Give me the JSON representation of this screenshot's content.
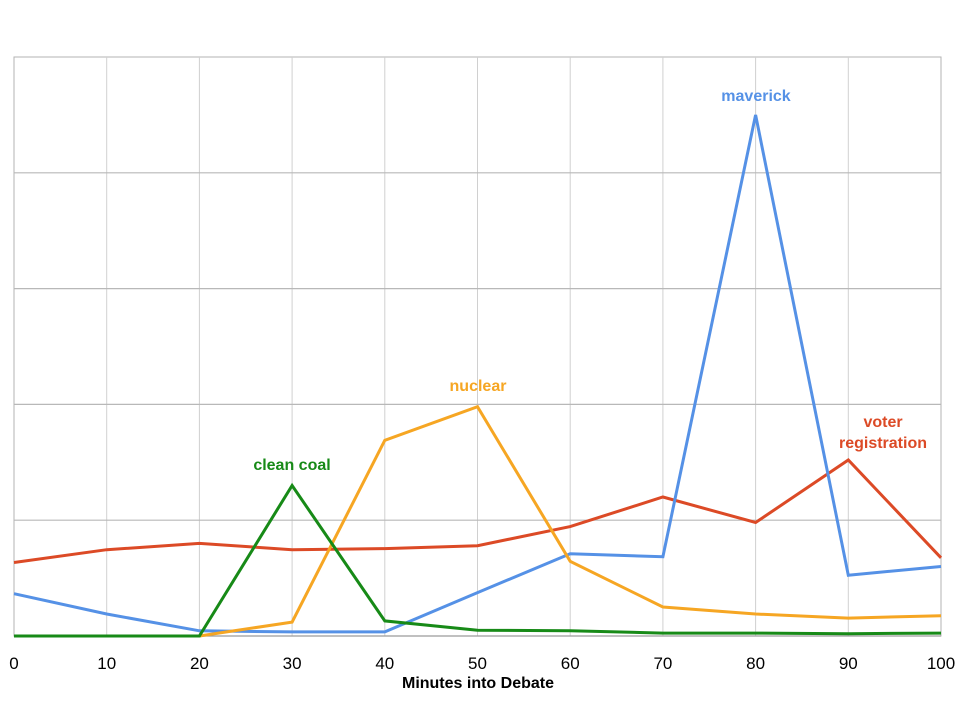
{
  "chart_data": {
    "type": "line",
    "title": "",
    "xlabel": "Minutes into Debate",
    "ylabel": "",
    "x": [
      0,
      10,
      20,
      30,
      40,
      50,
      60,
      70,
      80,
      90,
      100
    ],
    "xlim": [
      0,
      100
    ],
    "ylim": [
      0,
      100
    ],
    "grid": true,
    "legend": "none (series labeled inline)",
    "x_tick_labels": [
      "0",
      "10",
      "20",
      "30",
      "40",
      "50",
      "60",
      "70",
      "80",
      "90",
      "100"
    ],
    "series": [
      {
        "name": "voter registration",
        "label_lines": [
          "voter",
          "registration"
        ],
        "color": "#dc4a26",
        "values": [
          12.7,
          14.9,
          16.0,
          14.9,
          15.1,
          15.6,
          18.9,
          24.0,
          19.6,
          30.4,
          13.5
        ]
      },
      {
        "name": "maverick",
        "label_lines": [
          "maverick"
        ],
        "color": "#5591e6",
        "values": [
          7.3,
          3.8,
          0.9,
          0.7,
          0.7,
          7.5,
          14.2,
          13.7,
          90.0,
          10.5,
          12.0
        ]
      },
      {
        "name": "nuclear",
        "label_lines": [
          "nuclear"
        ],
        "color": "#f6a623",
        "values": [
          null,
          null,
          0.0,
          2.4,
          33.8,
          39.6,
          12.9,
          5.0,
          3.8,
          3.1,
          3.5
        ]
      },
      {
        "name": "clean coal",
        "label_lines": [
          "clean coal"
        ],
        "color": "#178a17",
        "values": [
          0.0,
          0.0,
          0.0,
          26.0,
          2.6,
          1.0,
          0.9,
          0.5,
          0.5,
          0.4,
          0.5
        ]
      }
    ]
  }
}
